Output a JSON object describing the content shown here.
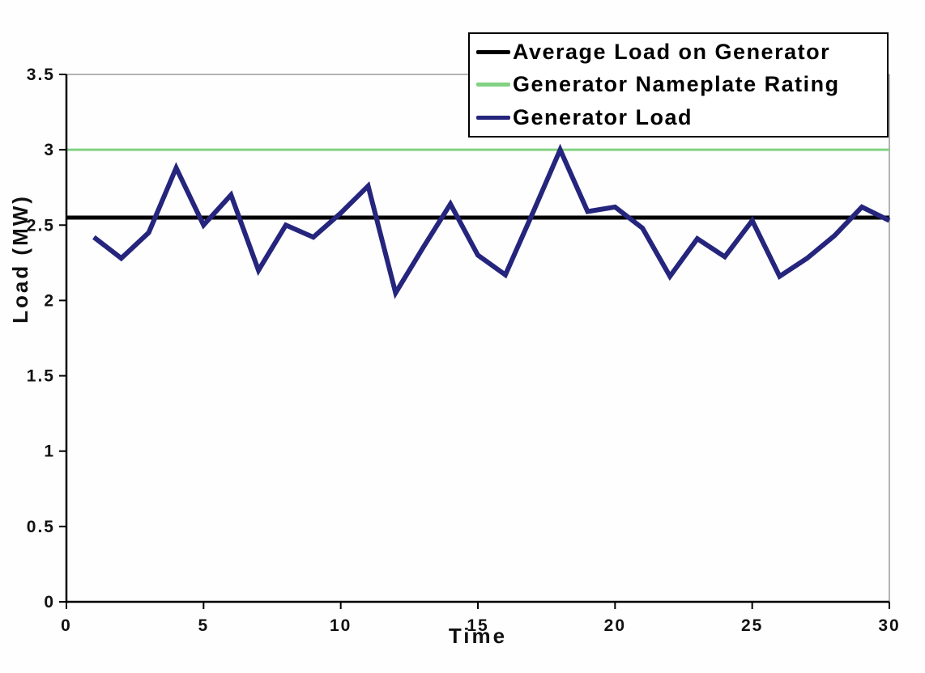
{
  "chart_data": {
    "type": "line",
    "title": "",
    "xlabel": "Time",
    "ylabel": "Load (MW)",
    "xlim": [
      0,
      30
    ],
    "ylim": [
      0,
      3.5
    ],
    "x_ticks": [
      0,
      5,
      10,
      15,
      20,
      25,
      30
    ],
    "y_ticks": [
      0,
      0.5,
      1,
      1.5,
      2,
      2.5,
      3,
      3.5
    ],
    "grid": false,
    "legend_position": "top-right",
    "plot_border_color": "#9a9a9a",
    "axis_color": "#000000",
    "x": [
      1,
      2,
      3,
      4,
      5,
      6,
      7,
      8,
      9,
      10,
      11,
      12,
      13,
      14,
      15,
      16,
      17,
      18,
      19,
      20,
      21,
      22,
      23,
      24,
      25,
      26,
      27,
      28,
      29,
      30
    ],
    "series": [
      {
        "name": "Average Load on Generator",
        "type": "hline",
        "value": 2.55,
        "color": "#000000",
        "stroke_width": 5
      },
      {
        "name": "Generator Nameplate Rating",
        "type": "hline",
        "value": 3.0,
        "color": "#82d282",
        "stroke_width": 3
      },
      {
        "name": "Generator Load",
        "type": "line",
        "color": "#25257d",
        "stroke_width": 6,
        "values": [
          2.42,
          2.28,
          2.45,
          2.88,
          2.5,
          2.7,
          2.2,
          2.5,
          2.42,
          2.58,
          2.76,
          2.05,
          2.35,
          2.64,
          2.3,
          2.17,
          2.58,
          3.0,
          2.59,
          2.62,
          2.48,
          2.16,
          2.41,
          2.29,
          2.53,
          2.16,
          2.28,
          2.43,
          2.62,
          2.53
        ]
      }
    ]
  }
}
